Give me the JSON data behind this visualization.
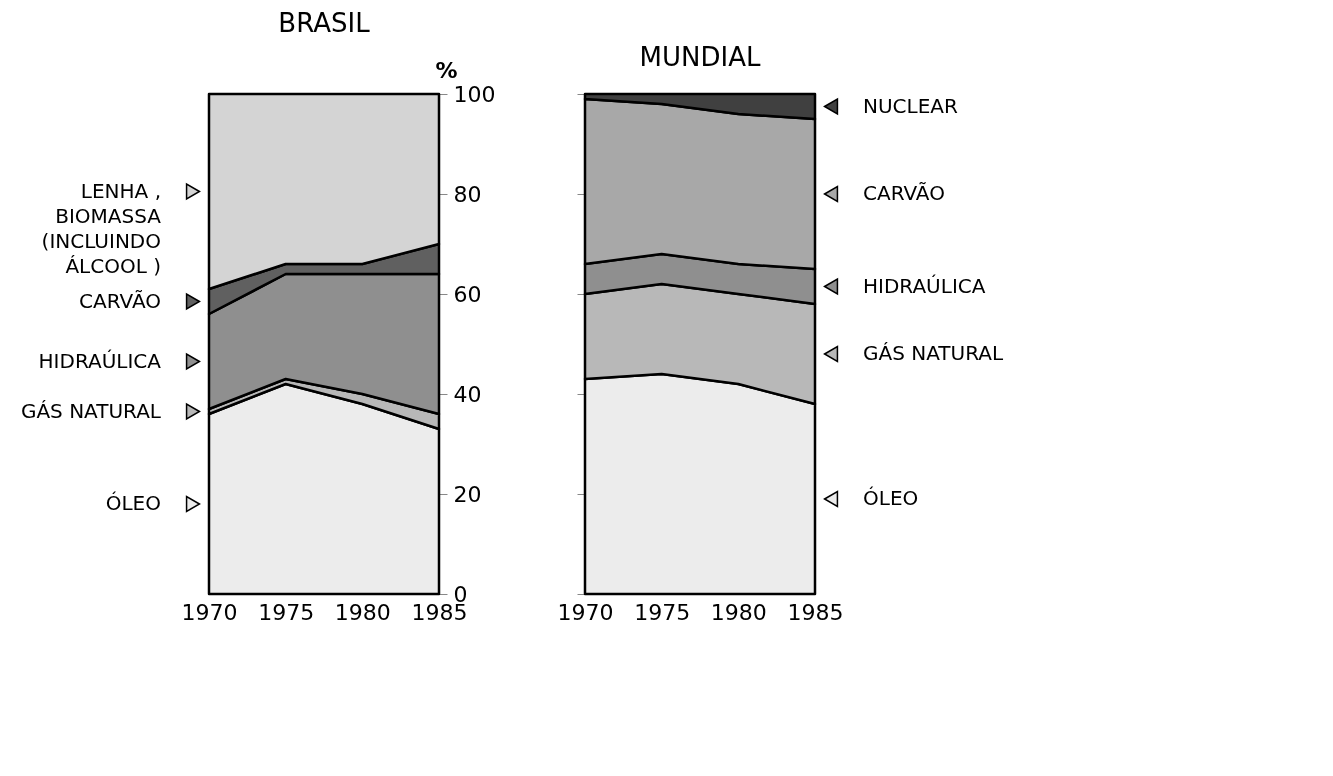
{
  "chart_data": [
    {
      "type": "area",
      "title": "BRASIL",
      "ylabel": "%",
      "stacked": true,
      "legend": "left",
      "x": [
        1970,
        1975,
        1980,
        1985
      ],
      "xlim": [
        1970,
        1985
      ],
      "xticks": [
        1970,
        1975,
        1980,
        1985
      ],
      "ylim": [
        0,
        100
      ],
      "yticks": [
        0,
        20,
        40,
        60,
        80,
        100
      ],
      "series": [
        {
          "name": "ÓLEO",
          "color": "#ececec",
          "values": [
            36,
            42,
            38,
            33
          ]
        },
        {
          "name": "GÁS NATURAL",
          "color": "#b8b8b8",
          "values": [
            1,
            1,
            2,
            3
          ]
        },
        {
          "name": "HIDRAÚLICA",
          "color": "#8f8f8f",
          "values": [
            19,
            21,
            24,
            28
          ]
        },
        {
          "name": "CARVÃO",
          "color": "#606060",
          "values": [
            5,
            2,
            2,
            6
          ]
        },
        {
          "name": "LENHA ,\nBIOMASSA\n(INCLUINDO\nÁLCOOL )",
          "color": "#d4d4d4",
          "values": [
            39,
            34,
            34,
            30
          ]
        }
      ]
    },
    {
      "type": "area",
      "title": "MUNDIAL",
      "stacked": true,
      "legend": "right",
      "tick_labels": "x",
      "x": [
        1970,
        1975,
        1980,
        1985
      ],
      "xlim": [
        1970,
        1985
      ],
      "xticks": [
        1970,
        1975,
        1980,
        1985
      ],
      "ylim": [
        0,
        100
      ],
      "yticks": [
        0,
        20,
        40,
        60,
        80,
        100
      ],
      "series": [
        {
          "name": "ÓLEO",
          "color": "#ececec",
          "values": [
            43,
            44,
            42,
            38
          ]
        },
        {
          "name": "GÁS NATURAL",
          "color": "#b8b8b8",
          "values": [
            17,
            18,
            18,
            20
          ]
        },
        {
          "name": "HIDRAÚLICA",
          "color": "#8f8f8f",
          "values": [
            6,
            6,
            6,
            7
          ]
        },
        {
          "name": "CARVÃO",
          "color": "#a8a8a8",
          "values": [
            33,
            30,
            30,
            30
          ]
        },
        {
          "name": "NUCLEAR",
          "color": "#404040",
          "values": [
            1,
            2,
            4,
            5
          ]
        }
      ]
    }
  ]
}
